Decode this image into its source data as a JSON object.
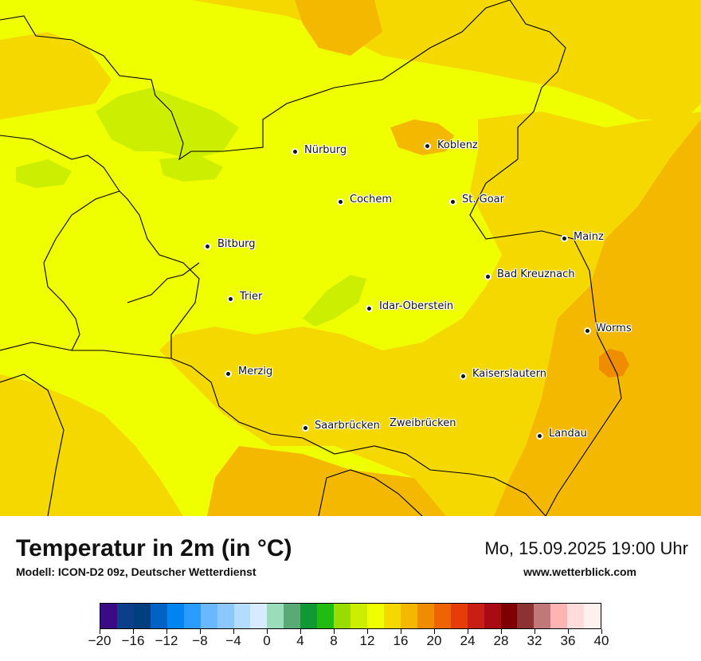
{
  "map": {
    "cities": [
      {
        "name": "Nürburg",
        "id": "nuerburg"
      },
      {
        "name": "Koblenz",
        "id": "koblenz"
      },
      {
        "name": "Cochem",
        "id": "cochem"
      },
      {
        "name": "St. Goar",
        "id": "st-goar"
      },
      {
        "name": "Mainz",
        "id": "mainz"
      },
      {
        "name": "Bitburg",
        "id": "bitburg"
      },
      {
        "name": "Bad Kreuznach",
        "id": "bad-kreuznach"
      },
      {
        "name": "Trier",
        "id": "trier"
      },
      {
        "name": "Idar-Oberstein",
        "id": "idar-oberstein"
      },
      {
        "name": "Worms",
        "id": "worms"
      },
      {
        "name": "Merzig",
        "id": "merzig"
      },
      {
        "name": "Kaiserslautern",
        "id": "kaiserslautern"
      },
      {
        "name": "Saarbrücken",
        "id": "saarbruecken"
      },
      {
        "name": "Zweibrücken",
        "id": "zweibruecken"
      },
      {
        "name": "Landau",
        "id": "landau"
      }
    ]
  },
  "footer": {
    "title": "Temperatur in 2m (in °C)",
    "model": "Modell: ICON-D2 09z, Deutscher Wetterdienst",
    "datetime": "Mo, 15.09.2025 19:00 Uhr",
    "site": "www.wetterblick.com"
  },
  "legend": {
    "tick_labels": [
      "−20",
      "−16",
      "−12",
      "−8",
      "−4",
      "0",
      "4",
      "8",
      "12",
      "16",
      "20",
      "24",
      "28",
      "32",
      "36",
      "40"
    ],
    "colors": [
      "#3b0a85",
      "#0b3f8c",
      "#003f7f",
      "#0062c4",
      "#0084f0",
      "#2a9cff",
      "#6ab8ff",
      "#8cc8ff",
      "#b3dcff",
      "#d6ebff",
      "#99ddbb",
      "#5aaa77",
      "#119933",
      "#22bb11",
      "#99dd00",
      "#ccee00",
      "#f0ff00",
      "#f5d800",
      "#f5b800",
      "#f08c00",
      "#f06400",
      "#e63c0a",
      "#c81e14",
      "#aa0a14",
      "#7f0000",
      "#8c3232",
      "#c07878",
      "#ffb4b4",
      "#ffdcdc",
      "#fff0f0"
    ]
  },
  "palette": {
    "background": "#f0ff00",
    "warm_yellow": "#f5d800",
    "gold": "#f5b800",
    "orange": "#f08c00",
    "lime": "#ccee00"
  }
}
